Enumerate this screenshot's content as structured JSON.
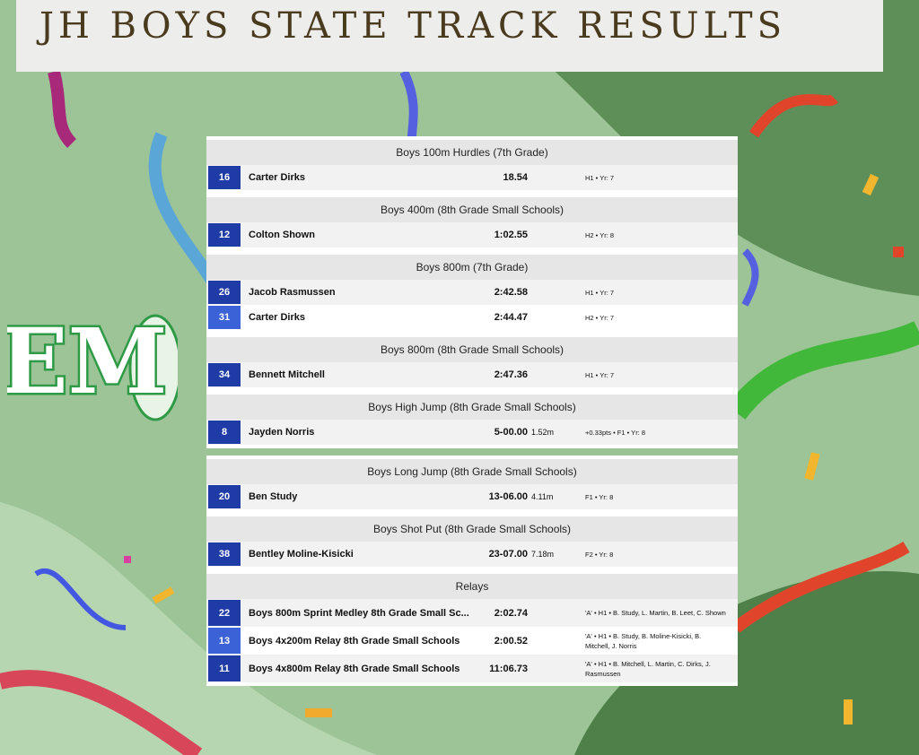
{
  "header": {
    "title": "JH BOYS STATE TRACK RESULTS"
  },
  "logo": {
    "text": "EM"
  },
  "panels": [
    {
      "sections": [
        {
          "title": "Boys 100m Hurdles (7th Grade)",
          "rows": [
            {
              "place": "16",
              "name": "Carter Dirks",
              "mark": "18.54",
              "info": "H1 • Yr: 7"
            }
          ]
        },
        {
          "title": "Boys 400m (8th Grade Small Schools)",
          "rows": [
            {
              "place": "12",
              "name": "Colton Shown",
              "mark": "1:02.55",
              "info": "H2 • Yr: 8"
            }
          ]
        },
        {
          "title": "Boys 800m (7th Grade)",
          "rows": [
            {
              "place": "26",
              "name": "Jacob Rasmussen",
              "mark": "2:42.58",
              "info": "H1 • Yr: 7"
            },
            {
              "place": "31",
              "name": "Carter Dirks",
              "mark": "2:44.47",
              "info": "H2 • Yr: 7"
            }
          ]
        },
        {
          "title": "Boys 800m (8th Grade Small Schools)",
          "rows": [
            {
              "place": "34",
              "name": "Bennett Mitchell",
              "mark": "2:47.36",
              "info": "H1 • Yr: 7"
            }
          ]
        },
        {
          "title": "Boys High Jump (8th Grade Small Schools)",
          "rows": [
            {
              "place": "8",
              "name": "Jayden Norris",
              "mark": "5-00.00",
              "metric": "1.52m",
              "info": "+0.33pts • F1 • Yr: 8"
            }
          ]
        }
      ]
    },
    {
      "sections": [
        {
          "title": "Boys Long Jump (8th Grade Small Schools)",
          "rows": [
            {
              "place": "20",
              "name": "Ben Study",
              "mark": "13-06.00",
              "metric": "4.11m",
              "info": "F1 • Yr: 8"
            }
          ]
        },
        {
          "title": "Boys Shot Put (8th Grade Small Schools)",
          "rows": [
            {
              "place": "38",
              "name": "Bentley Moline-Kisicki",
              "mark": "23-07.00",
              "metric": "7.18m",
              "info": "F2 • Yr: 8"
            }
          ]
        },
        {
          "title": "Relays",
          "rows": [
            {
              "place": "22",
              "name": "Boys 800m Sprint Medley 8th Grade Small Sc...",
              "mark": "2:02.74",
              "info": "'A' • H1 • B. Study, L. Martin, B. Leet, C. Shown"
            },
            {
              "place": "13",
              "name": "Boys 4x200m Relay 8th Grade Small Schools",
              "mark": "2:00.52",
              "info": "'A' • H1 • B. Study, B. Moline-Kisicki, B. Mitchell, J. Norris"
            },
            {
              "place": "11",
              "name": "Boys 4x800m Relay 8th Grade Small Schools",
              "mark": "11:06.73",
              "info": "'A' • H1 • B. Mitchell, L. Martin, C. Dirks, J. Rasmussen"
            }
          ]
        }
      ]
    }
  ]
}
